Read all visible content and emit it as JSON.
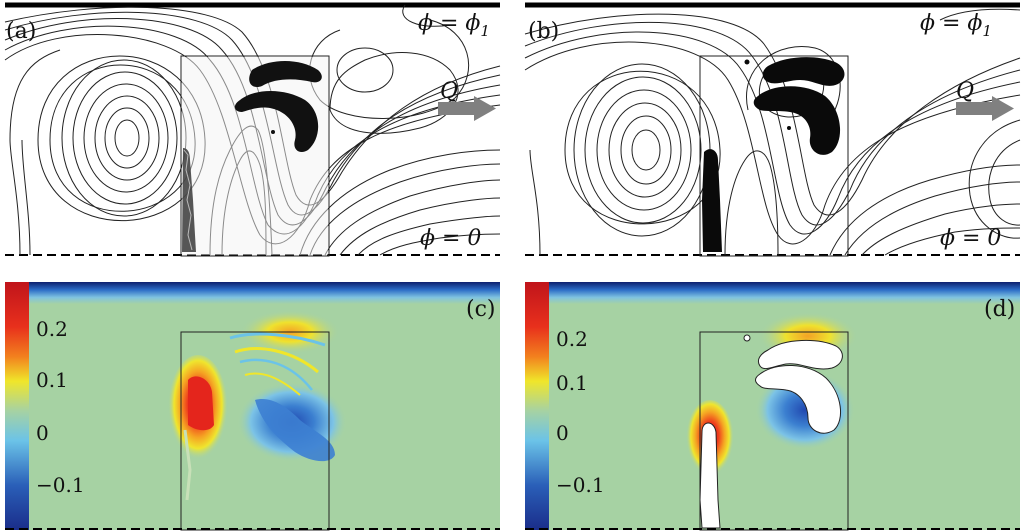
{
  "panels": {
    "a": {
      "label": "(a)",
      "top_boundary": "ϕ = ϕ",
      "top_sub": "1",
      "flux_label": "Q",
      "bottom_boundary": "ϕ = 0"
    },
    "b": {
      "label": "(b)",
      "top_boundary": "ϕ = ϕ",
      "top_sub": "1",
      "flux_label": "Q",
      "bottom_boundary": "ϕ = 0"
    },
    "c": {
      "label": "(c)"
    },
    "d": {
      "label": "(d)"
    }
  },
  "colorbar": {
    "ticks": [
      "0.2",
      "0.1",
      "0",
      "−0.1"
    ],
    "colors": {
      "top": "#c0141b",
      "high": "#f2801e",
      "mid_high": "#f0e62a",
      "mid": "#a6d2a3",
      "mid_low": "#6bc3e8",
      "low": "#2a5fb8",
      "bottom": "#1a2d8a"
    }
  },
  "colors": {
    "background_field": "#a6d2a3",
    "line": "#222222",
    "arrow": "#808080",
    "solid": "#0a0a0a"
  }
}
